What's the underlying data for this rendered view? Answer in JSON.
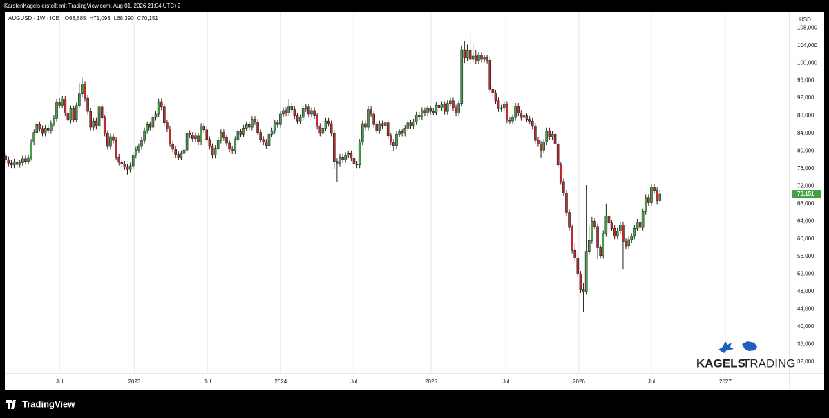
{
  "chart_data": {
    "type": "candlestick",
    "subtitle": "KarstenKagels erstellt mit TradingView.com, Aug 01, 2026 21:04 UTC+2",
    "title": "AUGUSD · 1W · ICE",
    "header_values": [
      "O68,685",
      "H71,093",
      "L68,390",
      "C70,151"
    ],
    "unit_label": "USD",
    "last_price_label": "70,151",
    "up_color": "#43a047",
    "down_color": "#c62828",
    "open": [
      78800,
      78000,
      77200,
      76800,
      77500,
      76900,
      77300,
      78200,
      77600,
      78500,
      82000,
      84200,
      86000,
      85100,
      84000,
      85200,
      84600,
      86200,
      87400,
      91000,
      90400,
      91800,
      88600,
      87000,
      89600,
      87200,
      90300,
      93000,
      95200,
      92000,
      89000,
      85400,
      86800,
      85600,
      90000,
      87500,
      84000,
      81000,
      83200,
      82400,
      78600,
      77400,
      77000,
      76400,
      75800,
      76600,
      79000,
      80200,
      81000,
      82400,
      84600,
      86000,
      85400,
      87600,
      88400,
      91200,
      90000,
      86400,
      85000,
      81600,
      80400,
      79200,
      78600,
      79400,
      80200,
      84000,
      83600,
      82800,
      83400,
      82000,
      85600,
      84800,
      82600,
      81000,
      79000,
      80600,
      82400,
      84200,
      83000,
      81800,
      80400,
      80000,
      82600,
      84400,
      83800,
      85200,
      86000,
      85400,
      87200,
      86600,
      84200,
      82600,
      82000,
      81200,
      83800,
      84600,
      86400,
      86000,
      88400,
      89200,
      88600,
      90200,
      89400,
      88000,
      86800,
      87600,
      89600,
      90000,
      88400,
      89200,
      88000,
      85600,
      84000,
      85200,
      86800,
      86200,
      84000,
      77600,
      77200,
      78600,
      78000,
      79000,
      79400,
      78400,
      77000,
      76800,
      82000,
      86200,
      85400,
      89400,
      88400,
      86000,
      84600,
      86200,
      85800,
      86400,
      83400,
      82000,
      81200,
      83800,
      84400,
      84000,
      85200,
      86400,
      85800,
      86600,
      88200,
      87800,
      89200,
      88600,
      89600,
      89000,
      88800,
      90400,
      89800,
      90600,
      89000,
      90800,
      91400,
      89800,
      88600,
      90800,
      103000,
      101200,
      102800,
      100800,
      101600,
      100400,
      101800,
      100800,
      101200,
      100600,
      94000,
      93200,
      91400,
      89600,
      89800,
      90600,
      87000,
      86800,
      87600,
      90200,
      88600,
      87600,
      88000,
      87200,
      86800,
      85600,
      82400,
      81600,
      80200,
      82000,
      84600,
      83200,
      83800,
      81600,
      76800,
      73000,
      70400,
      66000,
      62600,
      57400,
      55600,
      52000,
      48400,
      48000,
      57000,
      59600,
      64000,
      62800,
      58000,
      56200,
      61200,
      65200,
      63600,
      62400,
      60600,
      61800,
      63200,
      59400,
      58400,
      59800,
      60600,
      62400,
      63800,
      62600,
      66200,
      69400,
      68200,
      71800,
      71000,
      68685
    ],
    "high": [
      79500,
      78700,
      77900,
      78200,
      78200,
      78000,
      78900,
      78900,
      79200,
      82700,
      84900,
      86700,
      86700,
      85800,
      85900,
      85900,
      86900,
      88100,
      91700,
      92000,
      92500,
      92500,
      89300,
      90300,
      90300,
      91000,
      95400,
      96600,
      95900,
      92700,
      89700,
      87500,
      87500,
      90700,
      90700,
      88200,
      84700,
      83900,
      83900,
      83100,
      79300,
      78100,
      77700,
      77100,
      77300,
      79700,
      80900,
      81700,
      83100,
      85300,
      86700,
      86700,
      88300,
      89100,
      91900,
      91900,
      90700,
      87100,
      85700,
      82300,
      81100,
      79900,
      80100,
      80900,
      84700,
      84700,
      84300,
      84100,
      84100,
      86300,
      86300,
      85500,
      83300,
      81700,
      81300,
      83100,
      84900,
      84900,
      83700,
      82500,
      81100,
      83300,
      85100,
      85100,
      85900,
      86700,
      86700,
      87900,
      87900,
      87300,
      84900,
      83300,
      82700,
      84500,
      85300,
      87100,
      87100,
      89100,
      89900,
      89900,
      91800,
      90900,
      90100,
      88700,
      88300,
      90300,
      90700,
      90700,
      89900,
      89900,
      88700,
      86300,
      85900,
      87500,
      87500,
      86900,
      84700,
      78300,
      79300,
      79300,
      79700,
      80100,
      80100,
      79100,
      77700,
      82700,
      86900,
      86900,
      90100,
      90100,
      89100,
      86700,
      86900,
      86900,
      87100,
      87100,
      84100,
      82700,
      84500,
      85100,
      85100,
      85900,
      87100,
      87100,
      87300,
      88900,
      88900,
      89900,
      89900,
      90300,
      90300,
      89700,
      91100,
      91100,
      91300,
      91300,
      91500,
      92100,
      92100,
      90500,
      91500,
      104000,
      105000,
      104200,
      107000,
      104500,
      103000,
      102500,
      102500,
      101900,
      101900,
      101300,
      94700,
      93900,
      92100,
      90500,
      91300,
      91300,
      87700,
      88300,
      90900,
      90900,
      89300,
      88700,
      88700,
      87900,
      87500,
      86300,
      83100,
      82300,
      82700,
      85300,
      85300,
      84500,
      84500,
      82300,
      77500,
      73700,
      71100,
      66700,
      63300,
      59000,
      57000,
      52700,
      50000,
      72200,
      63000,
      65000,
      64700,
      63500,
      58700,
      61900,
      68000,
      65900,
      64300,
      63100,
      62500,
      63900,
      63900,
      60100,
      60500,
      61300,
      63100,
      64500,
      64500,
      66900,
      70100,
      70100,
      72500,
      72400,
      71700,
      71093
    ],
    "low": [
      77300,
      76500,
      76100,
      76100,
      76200,
      76200,
      76600,
      76900,
      76900,
      77800,
      81300,
      83500,
      84400,
      83300,
      83300,
      83900,
      83900,
      85500,
      86700,
      89700,
      89700,
      87900,
      86300,
      86300,
      86500,
      86500,
      89600,
      92300,
      91300,
      88300,
      84700,
      84700,
      84900,
      84900,
      86800,
      83300,
      80300,
      80300,
      81700,
      77900,
      76700,
      76300,
      75700,
      74600,
      75100,
      75900,
      78300,
      79500,
      80300,
      81700,
      83900,
      84700,
      84700,
      86900,
      87700,
      89300,
      85700,
      84300,
      80900,
      79700,
      78500,
      77900,
      77900,
      78700,
      79500,
      82900,
      82100,
      82100,
      81300,
      81300,
      84100,
      81900,
      80300,
      78300,
      78300,
      79900,
      81700,
      82300,
      81100,
      79700,
      79300,
      79300,
      81900,
      83100,
      83100,
      84500,
      84700,
      84700,
      85900,
      83500,
      81900,
      81300,
      80500,
      80500,
      83100,
      83900,
      85300,
      85300,
      87700,
      87900,
      87900,
      88700,
      87300,
      86100,
      86100,
      86900,
      88900,
      87700,
      87700,
      87300,
      84900,
      83300,
      83300,
      84500,
      85500,
      83300,
      75800,
      73000,
      76500,
      77300,
      77300,
      78300,
      77700,
      76300,
      76100,
      76100,
      81300,
      84700,
      84700,
      87700,
      85300,
      83900,
      83900,
      85100,
      85100,
      82700,
      81300,
      80000,
      80500,
      83100,
      83300,
      83300,
      84500,
      85100,
      85100,
      85900,
      87100,
      87100,
      87900,
      87900,
      88300,
      88100,
      88100,
      89100,
      89100,
      88300,
      88300,
      90100,
      89100,
      87900,
      87900,
      90100,
      100000,
      100500,
      99500,
      100100,
      99700,
      99700,
      100100,
      100100,
      99900,
      93300,
      92500,
      90700,
      88900,
      88900,
      89100,
      86300,
      86100,
      86100,
      86900,
      87900,
      86900,
      86900,
      86500,
      86100,
      84900,
      81700,
      80900,
      78400,
      79500,
      81300,
      82500,
      82500,
      80900,
      76100,
      72300,
      69700,
      65300,
      61900,
      56700,
      54900,
      51300,
      47700,
      43400,
      47300,
      56300,
      58900,
      62100,
      55400,
      55500,
      55500,
      60500,
      62900,
      61700,
      59900,
      59900,
      61100,
      53000,
      57700,
      57700,
      59100,
      59900,
      61700,
      61900,
      61900,
      65500,
      67500,
      67500,
      70300,
      67900,
      68390
    ],
    "close": [
      78000,
      77200,
      76800,
      77500,
      76900,
      77300,
      78200,
      77600,
      78500,
      82000,
      84200,
      86000,
      85100,
      84000,
      85200,
      84600,
      86200,
      87400,
      91000,
      90400,
      91800,
      88600,
      87000,
      89600,
      87200,
      90300,
      93000,
      95200,
      92000,
      89000,
      85400,
      86800,
      85600,
      90000,
      87500,
      84000,
      81000,
      83200,
      82400,
      78600,
      77400,
      77000,
      76400,
      75800,
      76600,
      79000,
      80200,
      81000,
      82400,
      84600,
      86000,
      85400,
      87600,
      88400,
      91200,
      90000,
      86400,
      85000,
      81600,
      80400,
      79200,
      78600,
      79400,
      80200,
      84000,
      83600,
      82800,
      83400,
      82000,
      85600,
      84800,
      82600,
      81000,
      79000,
      80600,
      82400,
      84200,
      83000,
      81800,
      80400,
      80000,
      82600,
      84400,
      83800,
      85200,
      86000,
      85400,
      87200,
      86600,
      84200,
      82600,
      82000,
      81200,
      83800,
      84600,
      86400,
      86000,
      88400,
      89200,
      88600,
      90200,
      89400,
      88000,
      86800,
      87600,
      89600,
      90000,
      88400,
      89200,
      88000,
      85600,
      84000,
      85200,
      86800,
      86200,
      84000,
      77600,
      77200,
      78600,
      78000,
      79000,
      79400,
      78400,
      77000,
      76800,
      82000,
      86200,
      85400,
      89400,
      88400,
      86000,
      84600,
      86200,
      85800,
      86400,
      83400,
      82000,
      81200,
      83800,
      84400,
      84000,
      85200,
      86400,
      85800,
      86600,
      88200,
      87800,
      89200,
      88600,
      89600,
      89000,
      88800,
      90400,
      89800,
      90600,
      89000,
      90800,
      91400,
      89800,
      88600,
      90800,
      103000,
      101200,
      102800,
      100800,
      101600,
      100400,
      101800,
      100800,
      101200,
      100600,
      94000,
      93200,
      91400,
      89600,
      89800,
      90600,
      87000,
      86800,
      87600,
      90200,
      88600,
      87600,
      88000,
      87200,
      86800,
      85600,
      82400,
      81600,
      80200,
      82000,
      84600,
      83200,
      83800,
      81600,
      76800,
      73000,
      70400,
      66000,
      62600,
      57400,
      55600,
      52000,
      48400,
      48000,
      57000,
      59600,
      64000,
      62800,
      58000,
      56200,
      61200,
      65200,
      63600,
      62400,
      60600,
      61800,
      63200,
      59400,
      58400,
      59800,
      60600,
      62400,
      63800,
      62600,
      66200,
      69400,
      68200,
      71800,
      71000,
      68685,
      70151
    ],
    "xlim": [
      -0.3,
      276.8
    ],
    "xticks": [
      {
        "value": 19,
        "label": "Jul"
      },
      {
        "value": 45.4,
        "label": "2023"
      },
      {
        "value": 71.2,
        "label": "Jul"
      },
      {
        "value": 97.1,
        "label": "2024"
      },
      {
        "value": 122.9,
        "label": "Jul"
      },
      {
        "value": 150.2,
        "label": "2025"
      },
      {
        "value": 176.6,
        "label": "Jul"
      },
      {
        "value": 202.4,
        "label": "2026"
      },
      {
        "value": 228,
        "label": "Jul"
      },
      {
        "value": 254.1,
        "label": "2027"
      }
    ],
    "ylim": [
      29300,
      111500
    ],
    "yticks": [
      {
        "value": 32000,
        "label": "32,000"
      },
      {
        "value": 36000,
        "label": "36,000"
      },
      {
        "value": 40000,
        "label": "40,000"
      },
      {
        "value": 44000,
        "label": "44,000"
      },
      {
        "value": 48000,
        "label": "48,000"
      },
      {
        "value": 52000,
        "label": "52,000"
      },
      {
        "value": 56000,
        "label": "56,000"
      },
      {
        "value": 60000,
        "label": "60,000"
      },
      {
        "value": 64000,
        "label": "64,000"
      },
      {
        "value": 68000,
        "label": "68,000"
      },
      {
        "value": 72000,
        "label": "72,000"
      },
      {
        "value": 76000,
        "label": "76,000"
      },
      {
        "value": 80000,
        "label": "80,000"
      },
      {
        "value": 84000,
        "label": "84,000"
      },
      {
        "value": 88000,
        "label": "88,000"
      },
      {
        "value": 92000,
        "label": "92,000"
      },
      {
        "value": 96000,
        "label": "96,000"
      },
      {
        "value": 100000,
        "label": "100,000"
      },
      {
        "value": 104000,
        "label": "104,000"
      },
      {
        "value": 108000,
        "label": "108,000"
      }
    ],
    "grid": {
      "x": true,
      "y": false
    }
  },
  "logo": {
    "word1": "KAGELS",
    "word2": "TRADING"
  },
  "footer": {
    "brand": "TradingView"
  }
}
